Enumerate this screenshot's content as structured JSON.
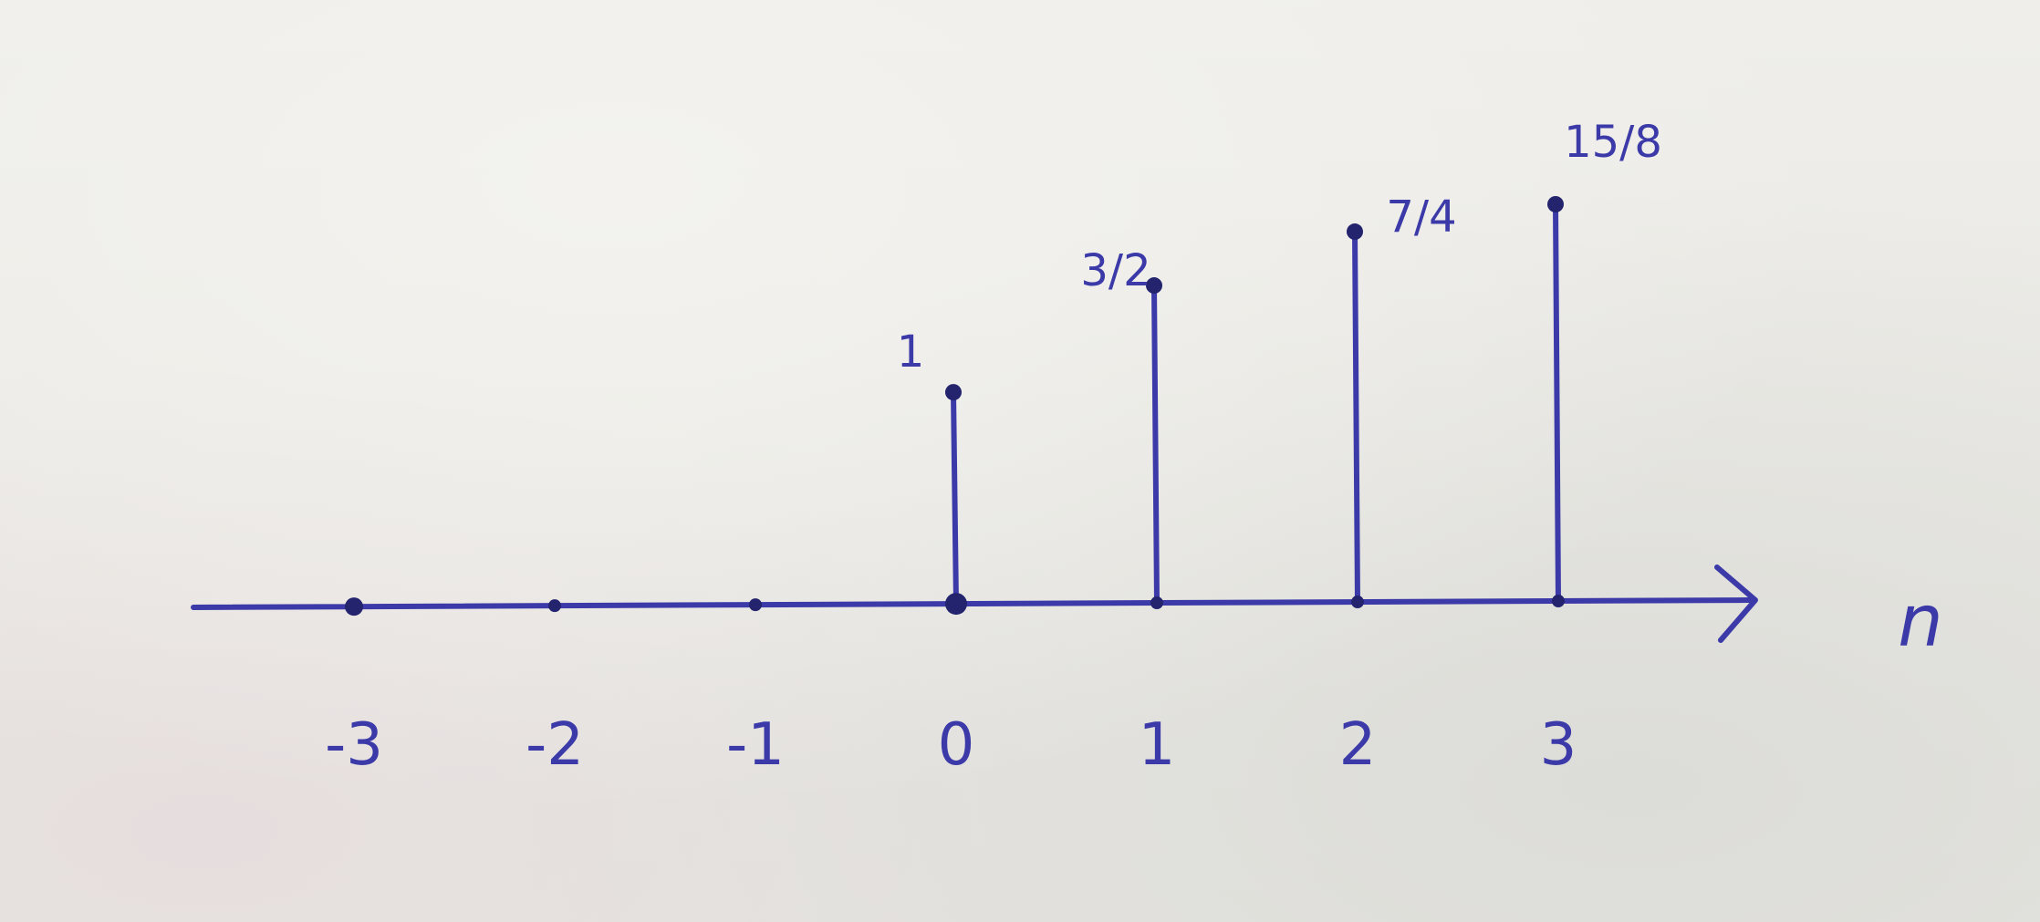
{
  "chart_data": {
    "type": "stem",
    "xlabel": "n",
    "x_ticks": [
      "-3",
      "-2",
      "-1",
      "0",
      "1",
      "2",
      "3"
    ],
    "points": [
      {
        "x": -3,
        "y": 0,
        "label": ""
      },
      {
        "x": -2,
        "y": 0,
        "label": ""
      },
      {
        "x": -1,
        "y": 0,
        "label": ""
      },
      {
        "x": 0,
        "y": 1,
        "label": "1"
      },
      {
        "x": 1,
        "y": 1.5,
        "label": "3/2"
      },
      {
        "x": 2,
        "y": 1.75,
        "label": "7/4"
      },
      {
        "x": 3,
        "y": 1.875,
        "label": "15/8"
      }
    ],
    "ylim": [
      0,
      2
    ],
    "grid": false
  },
  "colors": {
    "ink": "#3b3aa8",
    "ink_dark": "#23236e"
  }
}
